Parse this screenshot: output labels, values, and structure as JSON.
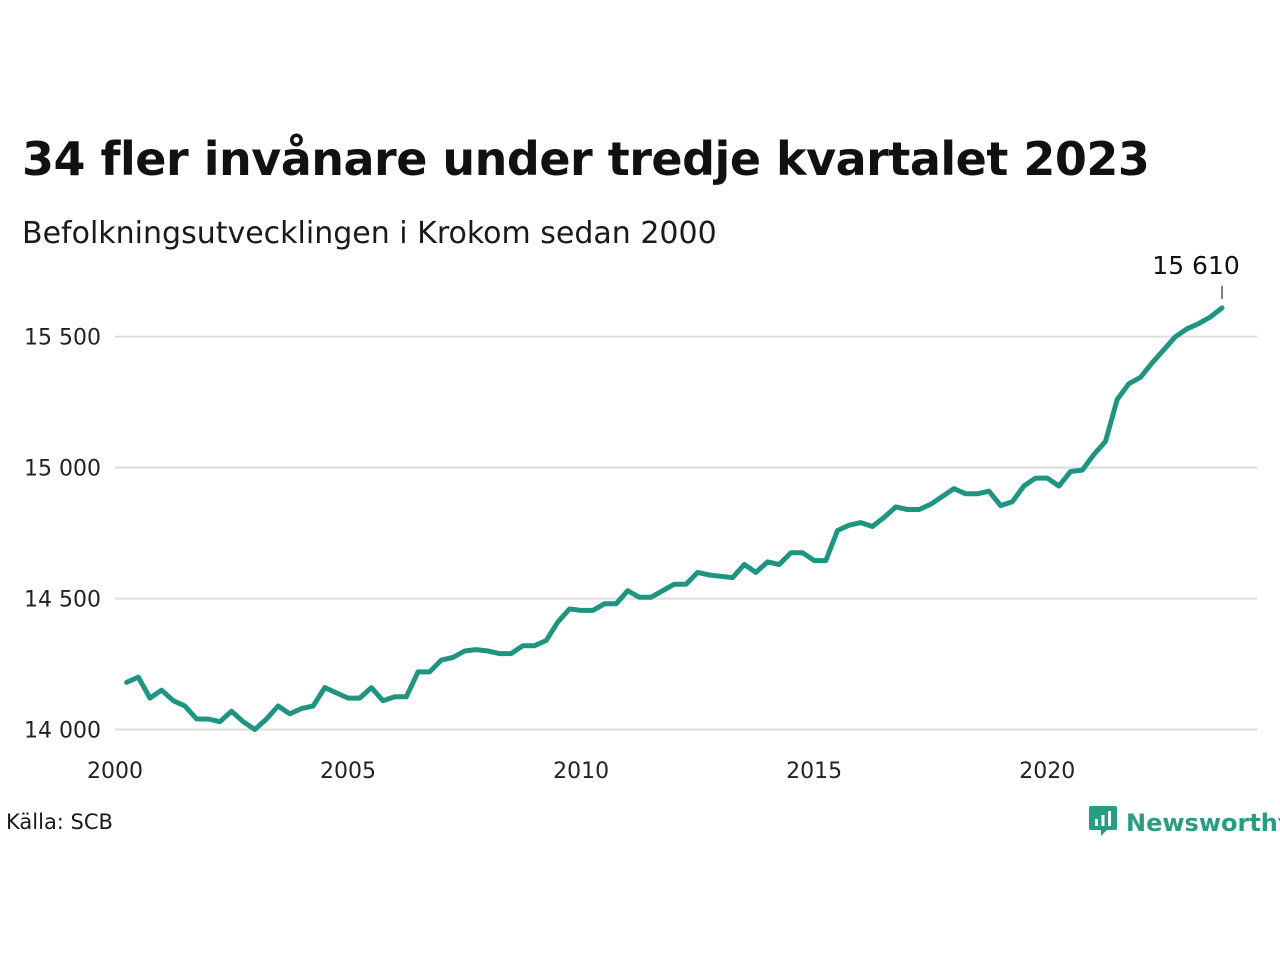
{
  "header": {
    "title": "34 fler invånare under tredje kvartalet 2023",
    "subtitle": "Befolkningsutvecklingen i Krokom sedan 2000"
  },
  "footer": {
    "source": "Källa: SCB",
    "brand": "Newsworthy",
    "brand_icon": "newsworthy-logo-icon"
  },
  "colors": {
    "line": "#1f9480",
    "grid": "#dddddd",
    "brand": "#2a9c84"
  },
  "chart_data": {
    "type": "line",
    "title": "34 fler invånare under tredje kvartalet 2023",
    "subtitle": "Befolkningsutvecklingen i Krokom sedan 2000",
    "xlabel": "",
    "ylabel": "",
    "xlim": [
      2000,
      2024.5
    ],
    "ylim": [
      13960,
      15640
    ],
    "yticks": [
      14000,
      14500,
      15000,
      15500
    ],
    "ytick_labels": [
      "14 000",
      "14 500",
      "15 000",
      "15 500"
    ],
    "xticks": [
      2000,
      2005,
      2010,
      2015,
      2020
    ],
    "xtick_labels": [
      "2000",
      "2005",
      "2010",
      "2015",
      "2020"
    ],
    "grid": true,
    "end_label": "15 610",
    "series": [
      {
        "name": "",
        "x": [
          2000.25,
          2000.5,
          2000.75,
          2001.0,
          2001.25,
          2001.5,
          2001.75,
          2002.0,
          2002.25,
          2002.5,
          2002.75,
          2003.0,
          2003.25,
          2003.5,
          2003.75,
          2004.0,
          2004.25,
          2004.5,
          2004.75,
          2005.0,
          2005.25,
          2005.5,
          2005.75,
          2006.0,
          2006.25,
          2006.5,
          2006.75,
          2007.0,
          2007.25,
          2007.5,
          2007.75,
          2008.0,
          2008.25,
          2008.5,
          2008.75,
          2009.0,
          2009.25,
          2009.5,
          2009.75,
          2010.0,
          2010.25,
          2010.5,
          2010.75,
          2011.0,
          2011.25,
          2011.5,
          2011.75,
          2012.0,
          2012.25,
          2012.5,
          2012.75,
          2013.0,
          2013.25,
          2013.5,
          2013.75,
          2014.0,
          2014.25,
          2014.5,
          2014.75,
          2015.0,
          2015.25,
          2015.5,
          2015.75,
          2016.0,
          2016.25,
          2016.5,
          2016.75,
          2017.0,
          2017.25,
          2017.5,
          2017.75,
          2018.0,
          2018.25,
          2018.5,
          2018.75,
          2019.0,
          2019.25,
          2019.5,
          2019.75,
          2020.0,
          2020.25,
          2020.5,
          2020.75,
          2021.0,
          2021.25,
          2021.5,
          2021.75,
          2022.0,
          2022.25,
          2022.5,
          2022.75,
          2023.0,
          2023.25,
          2023.5,
          2023.75
        ],
        "values": [
          14180,
          14200,
          14120,
          14150,
          14110,
          14090,
          14040,
          14040,
          14030,
          14070,
          14030,
          14000,
          14040,
          14090,
          14060,
          14080,
          14090,
          14160,
          14140,
          14120,
          14120,
          14160,
          14110,
          14125,
          14125,
          14220,
          14220,
          14265,
          14275,
          14300,
          14305,
          14300,
          14290,
          14290,
          14320,
          14320,
          14340,
          14410,
          14460,
          14455,
          14455,
          14480,
          14480,
          14530,
          14505,
          14505,
          14530,
          14555,
          14555,
          14600,
          14590,
          14585,
          14580,
          14630,
          14600,
          14640,
          14630,
          14675,
          14675,
          14645,
          14645,
          14760,
          14780,
          14790,
          14775,
          14810,
          14850,
          14840,
          14840,
          14860,
          14890,
          14920,
          14900,
          14900,
          14910,
          14855,
          14870,
          14930,
          14960,
          14960,
          14930,
          14985,
          14990,
          15050,
          15100,
          15260,
          15320,
          15345,
          15400,
          15450,
          15500,
          15530,
          15550,
          15575,
          15610
        ]
      }
    ]
  }
}
